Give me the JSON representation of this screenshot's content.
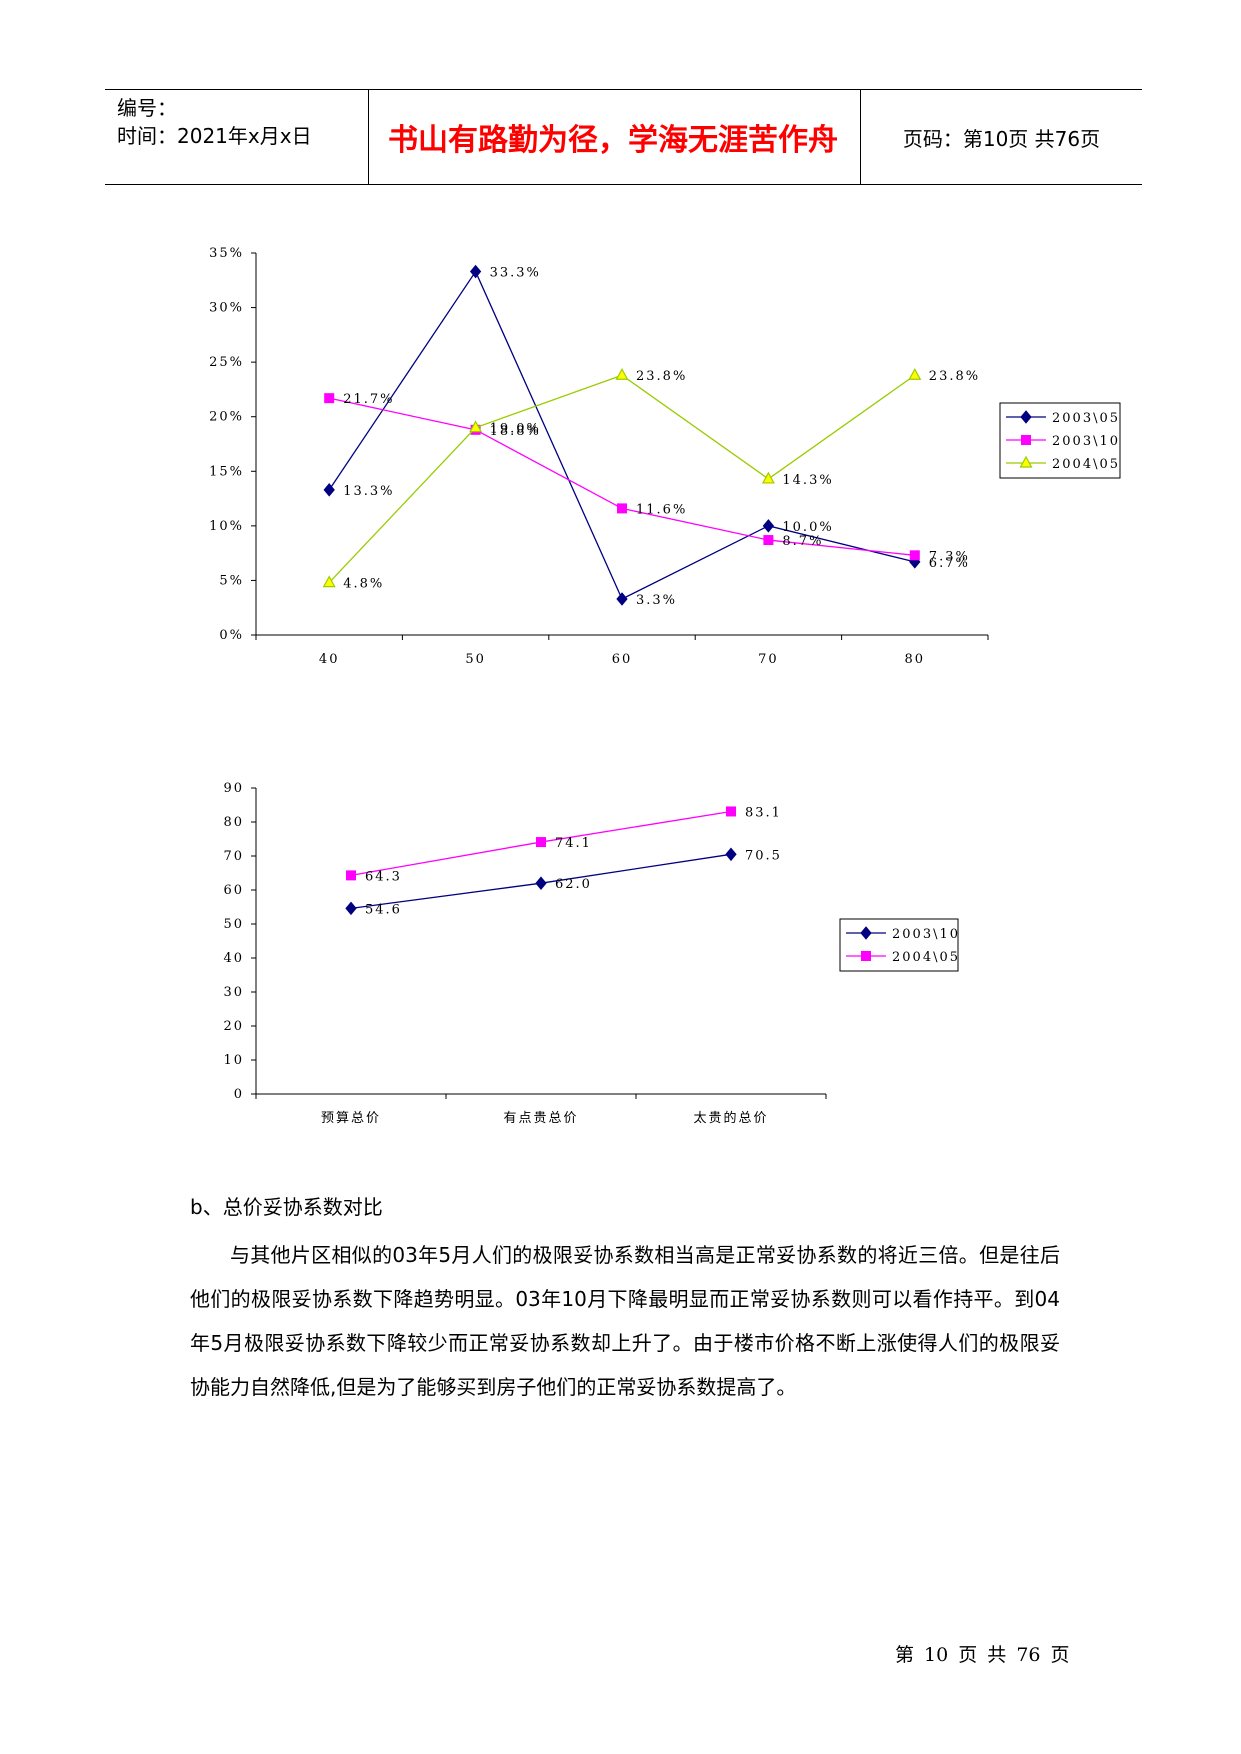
{
  "header": {
    "serial_label": "编号：",
    "date_label": "时间：2021年x月x日",
    "motto": "书山有路勤为径，学海无涯苦作舟",
    "page_info": "页码：第10页  共76页"
  },
  "charts": [
    {
      "chart_data": {
        "type": "line",
        "x": [
          "40",
          "50",
          "60",
          "70",
          "80"
        ],
        "y_ticks": [
          "0%",
          "5%",
          "10%",
          "15%",
          "20%",
          "25%",
          "30%",
          "35%"
        ],
        "ylim": [
          0,
          35
        ],
        "legend_position": "right",
        "series": [
          {
            "name": "2003\\05",
            "color": "#000080",
            "marker": "diamond",
            "values": [
              13.3,
              33.3,
              3.3,
              10.0,
              6.7
            ],
            "labels": [
              "13.3%",
              "33.3%",
              "3.3%",
              "10.0%",
              "6.7%"
            ]
          },
          {
            "name": "2003\\10",
            "color": "#ff00ff",
            "marker": "square",
            "values": [
              21.7,
              18.8,
              11.6,
              8.7,
              7.3
            ],
            "labels": [
              "21.7%",
              "18.8%",
              "11.6%",
              "8.7%",
              "7.3%"
            ]
          },
          {
            "name": "2004\\05",
            "color": "#99cc00",
            "marker": "triangle",
            "values": [
              4.8,
              19.0,
              23.8,
              14.3,
              23.8
            ],
            "labels": [
              "4.8%",
              "19.0%",
              "23.8%",
              "14.3%",
              "23.8%"
            ]
          }
        ]
      }
    },
    {
      "chart_data": {
        "type": "line",
        "categories": [
          "预算总价",
          "有点贵总价",
          "太贵的总价"
        ],
        "y_ticks": [
          "0",
          "10",
          "20",
          "30",
          "40",
          "50",
          "60",
          "70",
          "80",
          "90"
        ],
        "ylim": [
          0,
          90
        ],
        "legend_position": "right",
        "series": [
          {
            "name": "2003\\10",
            "color": "#000080",
            "marker": "diamond",
            "values": [
              54.6,
              62.0,
              70.5
            ],
            "labels": [
              "54.6",
              "62.0",
              "70.5"
            ]
          },
          {
            "name": "2004\\05",
            "color": "#ff00ff",
            "marker": "square",
            "values": [
              64.3,
              74.1,
              83.1
            ],
            "labels": [
              "64.3",
              "74.1",
              "83.1"
            ]
          }
        ]
      }
    }
  ],
  "section": {
    "title": "b、总价妥协系数对比",
    "paragraph": "与其他片区相似的03年5月人们的极限妥协系数相当高是正常妥协系数的将近三倍。但是往后他们的极限妥协系数下降趋势明显。03年10月下降最明显而正常妥协系数则可以看作持平。到04年5月极限妥协系数下降较少而正常妥协系数却上升了。由于楼市价格不断上涨使得人们的极限妥协能力自然降低,但是为了能够买到房子他们的正常妥协系数提高了。"
  },
  "footer": {
    "page_text": "第 10 页 共 76 页"
  }
}
